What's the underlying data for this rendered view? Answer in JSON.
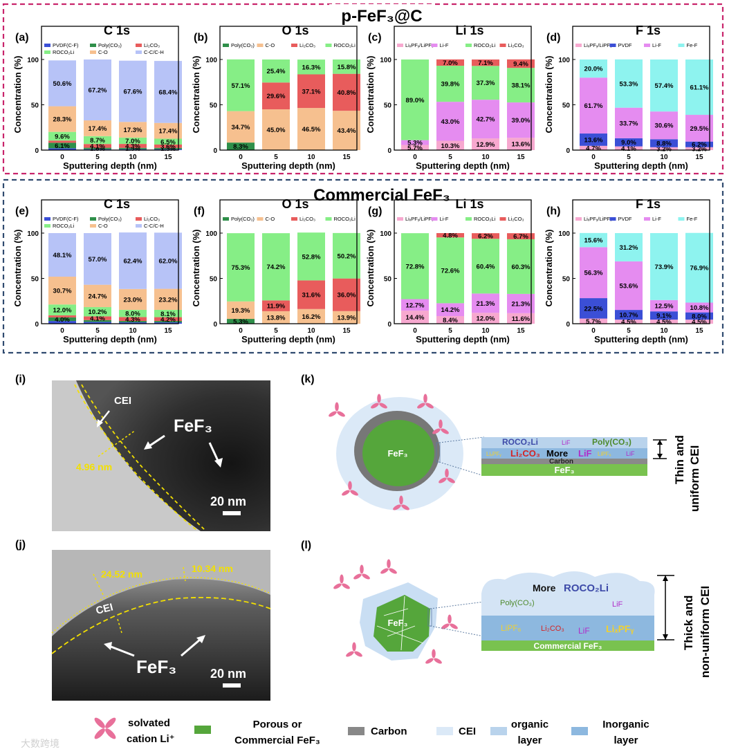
{
  "sections": {
    "top_title": "p-FeF₃@C",
    "bottom_title": "Commercial FeF₃"
  },
  "axes": {
    "ylabel": "Concentration (%)",
    "xlabel": "Sputtering depth (nm)",
    "xticks": [
      "0",
      "5",
      "10",
      "15"
    ],
    "yticks": [
      "0",
      "50",
      "100"
    ]
  },
  "chart_data": [
    {
      "id": "a",
      "label": "(a)",
      "title": "C 1s",
      "type": "bar-stacked",
      "legend": [
        "PVDF(C-F)",
        "Poly(CO₃)",
        "Li₂CO₃",
        "ROCO₂Li",
        "C-O",
        "C-C/C-H"
      ],
      "colors": [
        "#3b4fd6",
        "#2f8f4a",
        "#e85c5c",
        "#86ee86",
        "#f6c08f",
        "#b7c3f7"
      ],
      "series": [
        {
          "name": "PVDF(C-F)",
          "values": [
            2.0,
            1.0,
            1.0,
            1.0
          ]
        },
        {
          "name": "Poly(CO₃)",
          "values": [
            6.1,
            1.6,
            1.5,
            1.5
          ]
        },
        {
          "name": "Li₂CO₃",
          "values": [
            2.4,
            4.1,
            4.3,
            3.6
          ]
        },
        {
          "name": "ROCO₂Li",
          "values": [
            9.6,
            8.7,
            7.0,
            6.5
          ]
        },
        {
          "name": "C-O",
          "values": [
            28.3,
            17.4,
            17.3,
            17.4
          ]
        },
        {
          "name": "C-C/C-H",
          "values": [
            50.6,
            67.2,
            67.6,
            68.4
          ]
        }
      ],
      "labels": [
        [
          "",
          "6.1%",
          "",
          "9.6%",
          "28.3%",
          "50.6%"
        ],
        [
          "",
          "1.6%",
          "4.1%",
          "8.7%",
          "17.4%",
          "67.2%"
        ],
        [
          "",
          "1.5%",
          "4.3%",
          "7.0%",
          "17.3%",
          "67.6%"
        ],
        [
          "",
          "1.5%",
          "3.6%",
          "6.5%",
          "17.4%",
          "68.4%"
        ]
      ]
    },
    {
      "id": "b",
      "label": "(b)",
      "title": "O 1s",
      "type": "bar-stacked",
      "legend": [
        "Poly(CO₃)",
        "C-O",
        "Li₂CO₃",
        "ROCO₂Li"
      ],
      "colors": [
        "#2f8f4a",
        "#f6c08f",
        "#e85c5c",
        "#86ee86"
      ],
      "series": [
        {
          "name": "Poly(CO₃)",
          "values": [
            8.3,
            0,
            0,
            0
          ]
        },
        {
          "name": "C-O",
          "values": [
            34.7,
            45.0,
            46.5,
            43.4
          ]
        },
        {
          "name": "Li₂CO₃",
          "values": [
            0,
            29.6,
            37.1,
            40.8
          ]
        },
        {
          "name": "ROCO₂Li",
          "values": [
            57.1,
            25.4,
            16.3,
            15.8
          ]
        }
      ],
      "labels": [
        [
          "8.3%",
          "34.7%",
          "",
          "57.1%"
        ],
        [
          "",
          "45.0%",
          "29.6%",
          "25.4%"
        ],
        [
          "",
          "46.5%",
          "37.1%",
          "16.3%"
        ],
        [
          "",
          "43.4%",
          "40.8%",
          "15.8%"
        ]
      ]
    },
    {
      "id": "c",
      "label": "(c)",
      "title": "Li 1s",
      "type": "bar-stacked",
      "legend": [
        "LiₓPFᵧ/LiPF₆",
        "Li-F",
        "ROCO₂Li",
        "Li₂CO₃"
      ],
      "colors": [
        "#f7a8cf",
        "#e58cf0",
        "#86ee86",
        "#e85c5c"
      ],
      "series": [
        {
          "name": "LixPFy/LiPF6",
          "values": [
            5.7,
            10.3,
            12.9,
            13.6
          ]
        },
        {
          "name": "Li-F",
          "values": [
            5.3,
            43.0,
            42.7,
            39.0
          ]
        },
        {
          "name": "ROCO₂Li",
          "values": [
            89.0,
            39.8,
            37.3,
            38.1
          ]
        },
        {
          "name": "Li₂CO₃",
          "values": [
            0,
            7.0,
            7.1,
            9.4
          ]
        }
      ],
      "labels": [
        [
          "5.7%",
          "5.3%",
          "89.0%",
          ""
        ],
        [
          "10.3%",
          "43.0%",
          "39.8%",
          "7.0%"
        ],
        [
          "12.9%",
          "42.7%",
          "37.3%",
          "7.1%"
        ],
        [
          "13.6%",
          "39.0%",
          "38.1%",
          "9.4%"
        ]
      ]
    },
    {
      "id": "d",
      "label": "(d)",
      "title": "F 1s",
      "type": "bar-stacked",
      "legend": [
        "LiₓPFᵧ/LiPF₆",
        "PVDF",
        "Li-F",
        "Fe-F"
      ],
      "colors": [
        "#f7a8cf",
        "#3b4fd6",
        "#e58cf0",
        "#8ef3ef"
      ],
      "series": [
        {
          "name": "LixPFy/LiPF6",
          "values": [
            4.7,
            4.1,
            3.2,
            3.2
          ]
        },
        {
          "name": "PVDF",
          "values": [
            13.6,
            9.0,
            8.8,
            6.2
          ]
        },
        {
          "name": "Li-F",
          "values": [
            61.7,
            33.7,
            30.6,
            29.5
          ]
        },
        {
          "name": "Fe-F",
          "values": [
            20.0,
            53.3,
            57.4,
            61.1
          ]
        }
      ],
      "labels": [
        [
          "4.7%",
          "13.6%",
          "61.7%",
          "20.0%"
        ],
        [
          "4.1%",
          "9.0%",
          "33.7%",
          "53.3%"
        ],
        [
          "3.2%",
          "8.8%",
          "30.6%",
          "57.4%"
        ],
        [
          "3.2%",
          "6.2%",
          "29.5%",
          "61.1%"
        ]
      ]
    },
    {
      "id": "e",
      "label": "(e)",
      "title": "C 1s",
      "type": "bar-stacked",
      "legend": [
        "PVDF(C-F)",
        "Poly(CO₃)",
        "Li₂CO₃",
        "ROCO₂Li",
        "C-O",
        "C-C/C-H"
      ],
      "colors": [
        "#3b4fd6",
        "#2f8f4a",
        "#e85c5c",
        "#86ee86",
        "#f6c08f",
        "#b7c3f7"
      ],
      "series": [
        {
          "name": "PVDF(C-F)",
          "values": [
            3.0,
            2.0,
            1.5,
            1.5
          ]
        },
        {
          "name": "Poly(CO₃)",
          "values": [
            4.0,
            2.0,
            1.5,
            1.5
          ]
        },
        {
          "name": "Li₂CO₃",
          "values": [
            2.2,
            4.1,
            4.3,
            4.2
          ]
        },
        {
          "name": "ROCO₂Li",
          "values": [
            12.0,
            10.2,
            8.0,
            8.1
          ]
        },
        {
          "name": "C-O",
          "values": [
            30.7,
            24.7,
            23.0,
            23.2
          ]
        },
        {
          "name": "C-C/C-H",
          "values": [
            48.1,
            57.0,
            62.4,
            62.0
          ]
        }
      ],
      "labels": [
        [
          "",
          "4.0%",
          "",
          "12.0%",
          "30.7%",
          "48.1%"
        ],
        [
          "",
          "",
          "4.1%",
          "10.2%",
          "24.7%",
          "57.0%"
        ],
        [
          "",
          "",
          "4.3%",
          "8.0%",
          "23.0%",
          "62.4%"
        ],
        [
          "",
          "",
          "4.2%",
          "8.1%",
          "23.2%",
          "62.0%"
        ]
      ]
    },
    {
      "id": "f",
      "label": "(f)",
      "title": "O 1s",
      "type": "bar-stacked",
      "legend": [
        "Poly(CO₃)",
        "C-O",
        "Li₂CO₃",
        "ROCO₂Li"
      ],
      "colors": [
        "#2f8f4a",
        "#f6c08f",
        "#e85c5c",
        "#86ee86"
      ],
      "series": [
        {
          "name": "Poly(CO₃)",
          "values": [
            5.3,
            0,
            0,
            0
          ]
        },
        {
          "name": "C-O",
          "values": [
            19.3,
            13.8,
            16.2,
            13.9
          ]
        },
        {
          "name": "Li₂CO₃",
          "values": [
            0,
            11.9,
            31.6,
            36.0
          ]
        },
        {
          "name": "ROCO₂Li",
          "values": [
            75.3,
            74.2,
            52.8,
            50.2
          ]
        }
      ],
      "labels": [
        [
          "5.3%",
          "19.3%",
          "",
          "75.3%"
        ],
        [
          "",
          "13.8%",
          "11.9%",
          "74.2%"
        ],
        [
          "",
          "16.2%",
          "31.6%",
          "52.8%"
        ],
        [
          "",
          "13.9%",
          "36.0%",
          "50.2%"
        ]
      ]
    },
    {
      "id": "g",
      "label": "(g)",
      "title": "Li 1s",
      "type": "bar-stacked",
      "legend": [
        "LiₓPFᵧ/LiPF₆",
        "Li-F",
        "ROCO₂Li",
        "Li₂CO₃"
      ],
      "colors": [
        "#f7a8cf",
        "#e58cf0",
        "#86ee86",
        "#e85c5c"
      ],
      "series": [
        {
          "name": "LixPFy/LiPF6",
          "values": [
            14.4,
            8.4,
            12.0,
            11.6
          ]
        },
        {
          "name": "Li-F",
          "values": [
            12.7,
            14.2,
            21.3,
            21.3
          ]
        },
        {
          "name": "ROCO₂Li",
          "values": [
            72.8,
            72.6,
            60.4,
            60.3
          ]
        },
        {
          "name": "Li₂CO₃",
          "values": [
            0,
            4.8,
            6.2,
            6.7
          ]
        }
      ],
      "labels": [
        [
          "14.4%",
          "12.7%",
          "72.8%",
          ""
        ],
        [
          "8.4%",
          "14.2%",
          "72.6%",
          "4.8%"
        ],
        [
          "12.0%",
          "21.3%",
          "60.4%",
          "6.2%"
        ],
        [
          "11.6%",
          "21.3%",
          "60.3%",
          "6.7%"
        ]
      ]
    },
    {
      "id": "h",
      "label": "(h)",
      "title": "F 1s",
      "type": "bar-stacked",
      "legend": [
        "LiₓPFᵧ/LiPF₆",
        "PVDF",
        "Li-F",
        "Fe-F"
      ],
      "colors": [
        "#f7a8cf",
        "#3b4fd6",
        "#e58cf0",
        "#8ef3ef"
      ],
      "series": [
        {
          "name": "LixPFy/LiPF6",
          "values": [
            5.7,
            4.5,
            4.5,
            4.5
          ]
        },
        {
          "name": "PVDF",
          "values": [
            22.5,
            10.7,
            9.1,
            8.0
          ]
        },
        {
          "name": "Li-F",
          "values": [
            56.3,
            53.6,
            12.5,
            10.8
          ]
        },
        {
          "name": "Fe-F",
          "values": [
            15.6,
            31.2,
            73.9,
            76.9
          ]
        }
      ],
      "labels": [
        [
          "5.7%",
          "22.5%",
          "56.3%",
          "15.6%"
        ],
        [
          "4.5%",
          "10.7%",
          "53.6%",
          "31.2%"
        ],
        [
          "4.5%",
          "9.1%",
          "12.5%",
          "73.9%"
        ],
        [
          "4.5%",
          "8.0%",
          "10.8%",
          "76.9%"
        ]
      ]
    }
  ],
  "tem_i": {
    "label": "(i)",
    "cei": "CEI",
    "fef3": "FeF₃",
    "thickness": "4.96 nm",
    "scale": "20 nm"
  },
  "tem_j": {
    "label": "(j)",
    "cei": "CEI",
    "fef3": "FeF₃",
    "thickness1": "24.52 nm",
    "thickness2": "10.34 nm",
    "scale": "20 nm"
  },
  "schem_k": {
    "label": "(k)",
    "core": "FeF₃",
    "layer_words": [
      "ROCO₂Li",
      "LiF",
      "Poly(CO₃)",
      "LiₓPFᵧ",
      "Li₂CO₃",
      "More",
      "LiF",
      "LiPF₆",
      "LiF"
    ],
    "carbon": "Carbon",
    "base": "FeF₃",
    "side1": "Thin and",
    "side2": "uniform CEI"
  },
  "schem_l": {
    "label": "(l)",
    "core": "FeF₃",
    "top_words": [
      "More",
      "ROCO₂Li",
      "Poly(CO₃)",
      "LiF"
    ],
    "bot_words": [
      "LiPF₆",
      "Li₂CO₃",
      "LiF",
      "LiₓPFᵧ"
    ],
    "base": "Commercial FeF₃",
    "side1": "Thick and",
    "side2": "non-uniform CEI"
  },
  "legend": {
    "li": "solvated",
    "li2": "cation Li⁺",
    "fef3_1": "Porous or",
    "fef3_2": "Commercial FeF₃",
    "carbon": "Carbon",
    "cei": "CEI",
    "org1": "organic",
    "org2": "layer",
    "inorg1": "Inorganic",
    "inorg2": "layer"
  },
  "watermark": "大数跨境"
}
